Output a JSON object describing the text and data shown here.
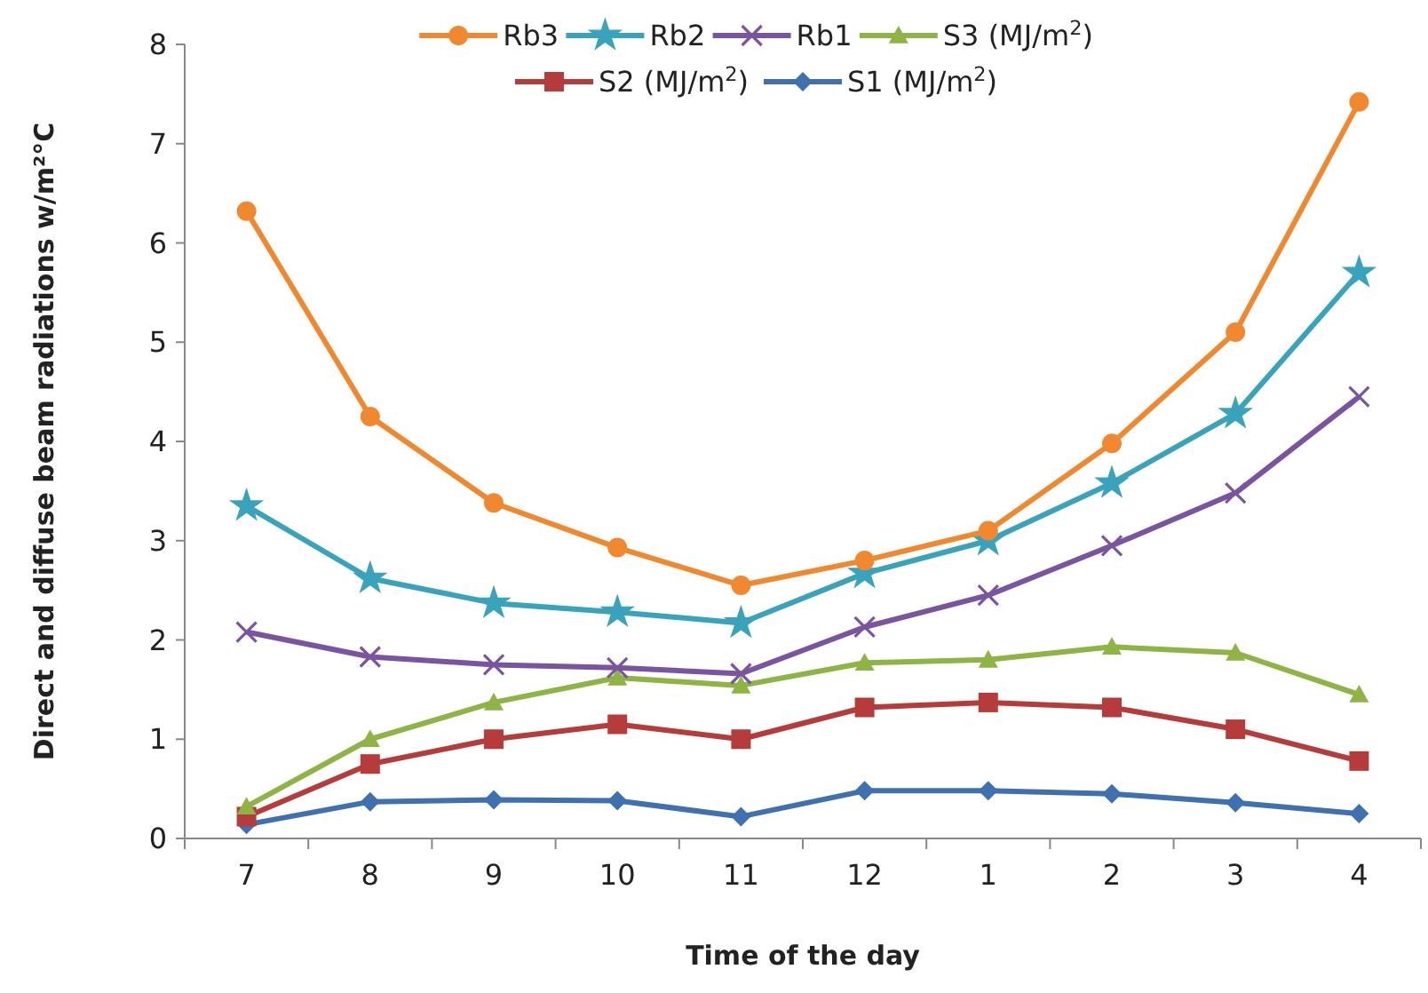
{
  "chart_data": {
    "type": "line",
    "xlabel": "Time of the day",
    "ylabel": "Direct and diffuse beam radiations w/m²°C",
    "categories": [
      "7",
      "8",
      "9",
      "10",
      "11",
      "12",
      "1",
      "2",
      "3",
      "4"
    ],
    "ylim": [
      0,
      8
    ],
    "yticks": [
      0,
      1,
      2,
      3,
      4,
      5,
      6,
      7,
      8
    ],
    "grid": false,
    "legend": "top",
    "line_style": "solid",
    "series": [
      {
        "name": "Rb3",
        "color": "#f0882f",
        "marker": "circle",
        "values": [
          6.32,
          4.25,
          3.38,
          2.93,
          2.55,
          2.8,
          3.1,
          3.98,
          5.1,
          7.42
        ]
      },
      {
        "name": "Rb2",
        "color": "#3aa3bc",
        "marker": "star",
        "values": [
          3.35,
          2.62,
          2.37,
          2.28,
          2.17,
          2.67,
          3.0,
          3.58,
          4.28,
          5.7
        ]
      },
      {
        "name": "Rb1",
        "color": "#7a54a0",
        "marker": "cross",
        "values": [
          2.08,
          1.83,
          1.75,
          1.72,
          1.66,
          2.13,
          2.45,
          2.95,
          3.48,
          4.45
        ]
      },
      {
        "name": "S3 (MJ/m$^{2}$)",
        "color": "#8db445",
        "marker": "triangle",
        "values": [
          0.32,
          1.0,
          1.37,
          1.62,
          1.54,
          1.77,
          1.8,
          1.93,
          1.87,
          1.45
        ]
      },
      {
        "name": "S2 (MJ/m$^{2}$)",
        "color": "#b53c3a",
        "marker": "square",
        "values": [
          0.22,
          0.75,
          1.0,
          1.15,
          1.0,
          1.32,
          1.37,
          1.32,
          1.1,
          0.78
        ]
      },
      {
        "name": "S1 (MJ/m$^{2}$)",
        "color": "#3f70b0",
        "marker": "diamond",
        "values": [
          0.14,
          0.37,
          0.39,
          0.38,
          0.22,
          0.48,
          0.48,
          0.45,
          0.36,
          0.25
        ]
      }
    ]
  }
}
